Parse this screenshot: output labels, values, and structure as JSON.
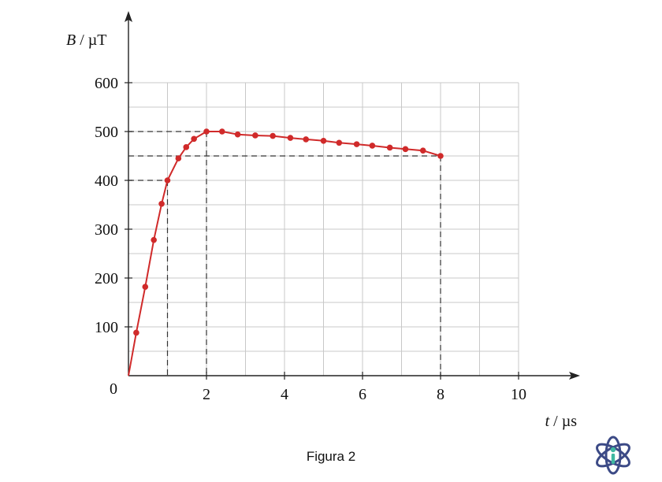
{
  "caption": "Figura 2",
  "logo_icon": "atom-info-icon",
  "colors": {
    "curve": "#d02a2a",
    "grid": "#c8c8c8",
    "axis": "#222222",
    "guide": "#333333",
    "logo": "#3c4a86",
    "logo_accent": "#3fb8a0"
  },
  "chart_data": {
    "type": "line",
    "xlabel_var": "t",
    "xlabel_unit": "µs",
    "ylabel_var": "B",
    "ylabel_unit": "µT",
    "xlim": [
      0,
      11.5
    ],
    "ylim": [
      0,
      600
    ],
    "x_ticks": [
      2,
      4,
      6,
      8,
      10
    ],
    "x_tick_labels": [
      "2",
      "4",
      "6",
      "8",
      "10"
    ],
    "y_ticks": [
      100,
      200,
      300,
      400,
      500,
      600
    ],
    "y_tick_labels": [
      "100",
      "200",
      "300",
      "400",
      "500",
      "600"
    ],
    "origin_label": "0",
    "grid": true,
    "grid_x_step": 1,
    "grid_y_step": 50,
    "series": [
      {
        "x": [
          0,
          0.2,
          0.43,
          0.65,
          0.85,
          1.0,
          1.28,
          1.48,
          1.68,
          2.0,
          2.4,
          2.8,
          3.25,
          3.7,
          4.15,
          4.55,
          5.0,
          5.4,
          5.85,
          6.25,
          6.7,
          7.1,
          7.55,
          8.0
        ],
        "y": [
          0,
          88,
          182,
          278,
          352,
          400,
          445,
          468,
          485,
          500,
          500,
          494,
          492,
          491,
          487,
          484,
          481,
          477,
          474,
          471,
          467,
          464,
          461,
          450
        ]
      }
    ],
    "guides": [
      {
        "x": 1,
        "y": 400
      },
      {
        "x": 2,
        "y": 500
      },
      {
        "x": 8,
        "y": 450
      }
    ]
  }
}
